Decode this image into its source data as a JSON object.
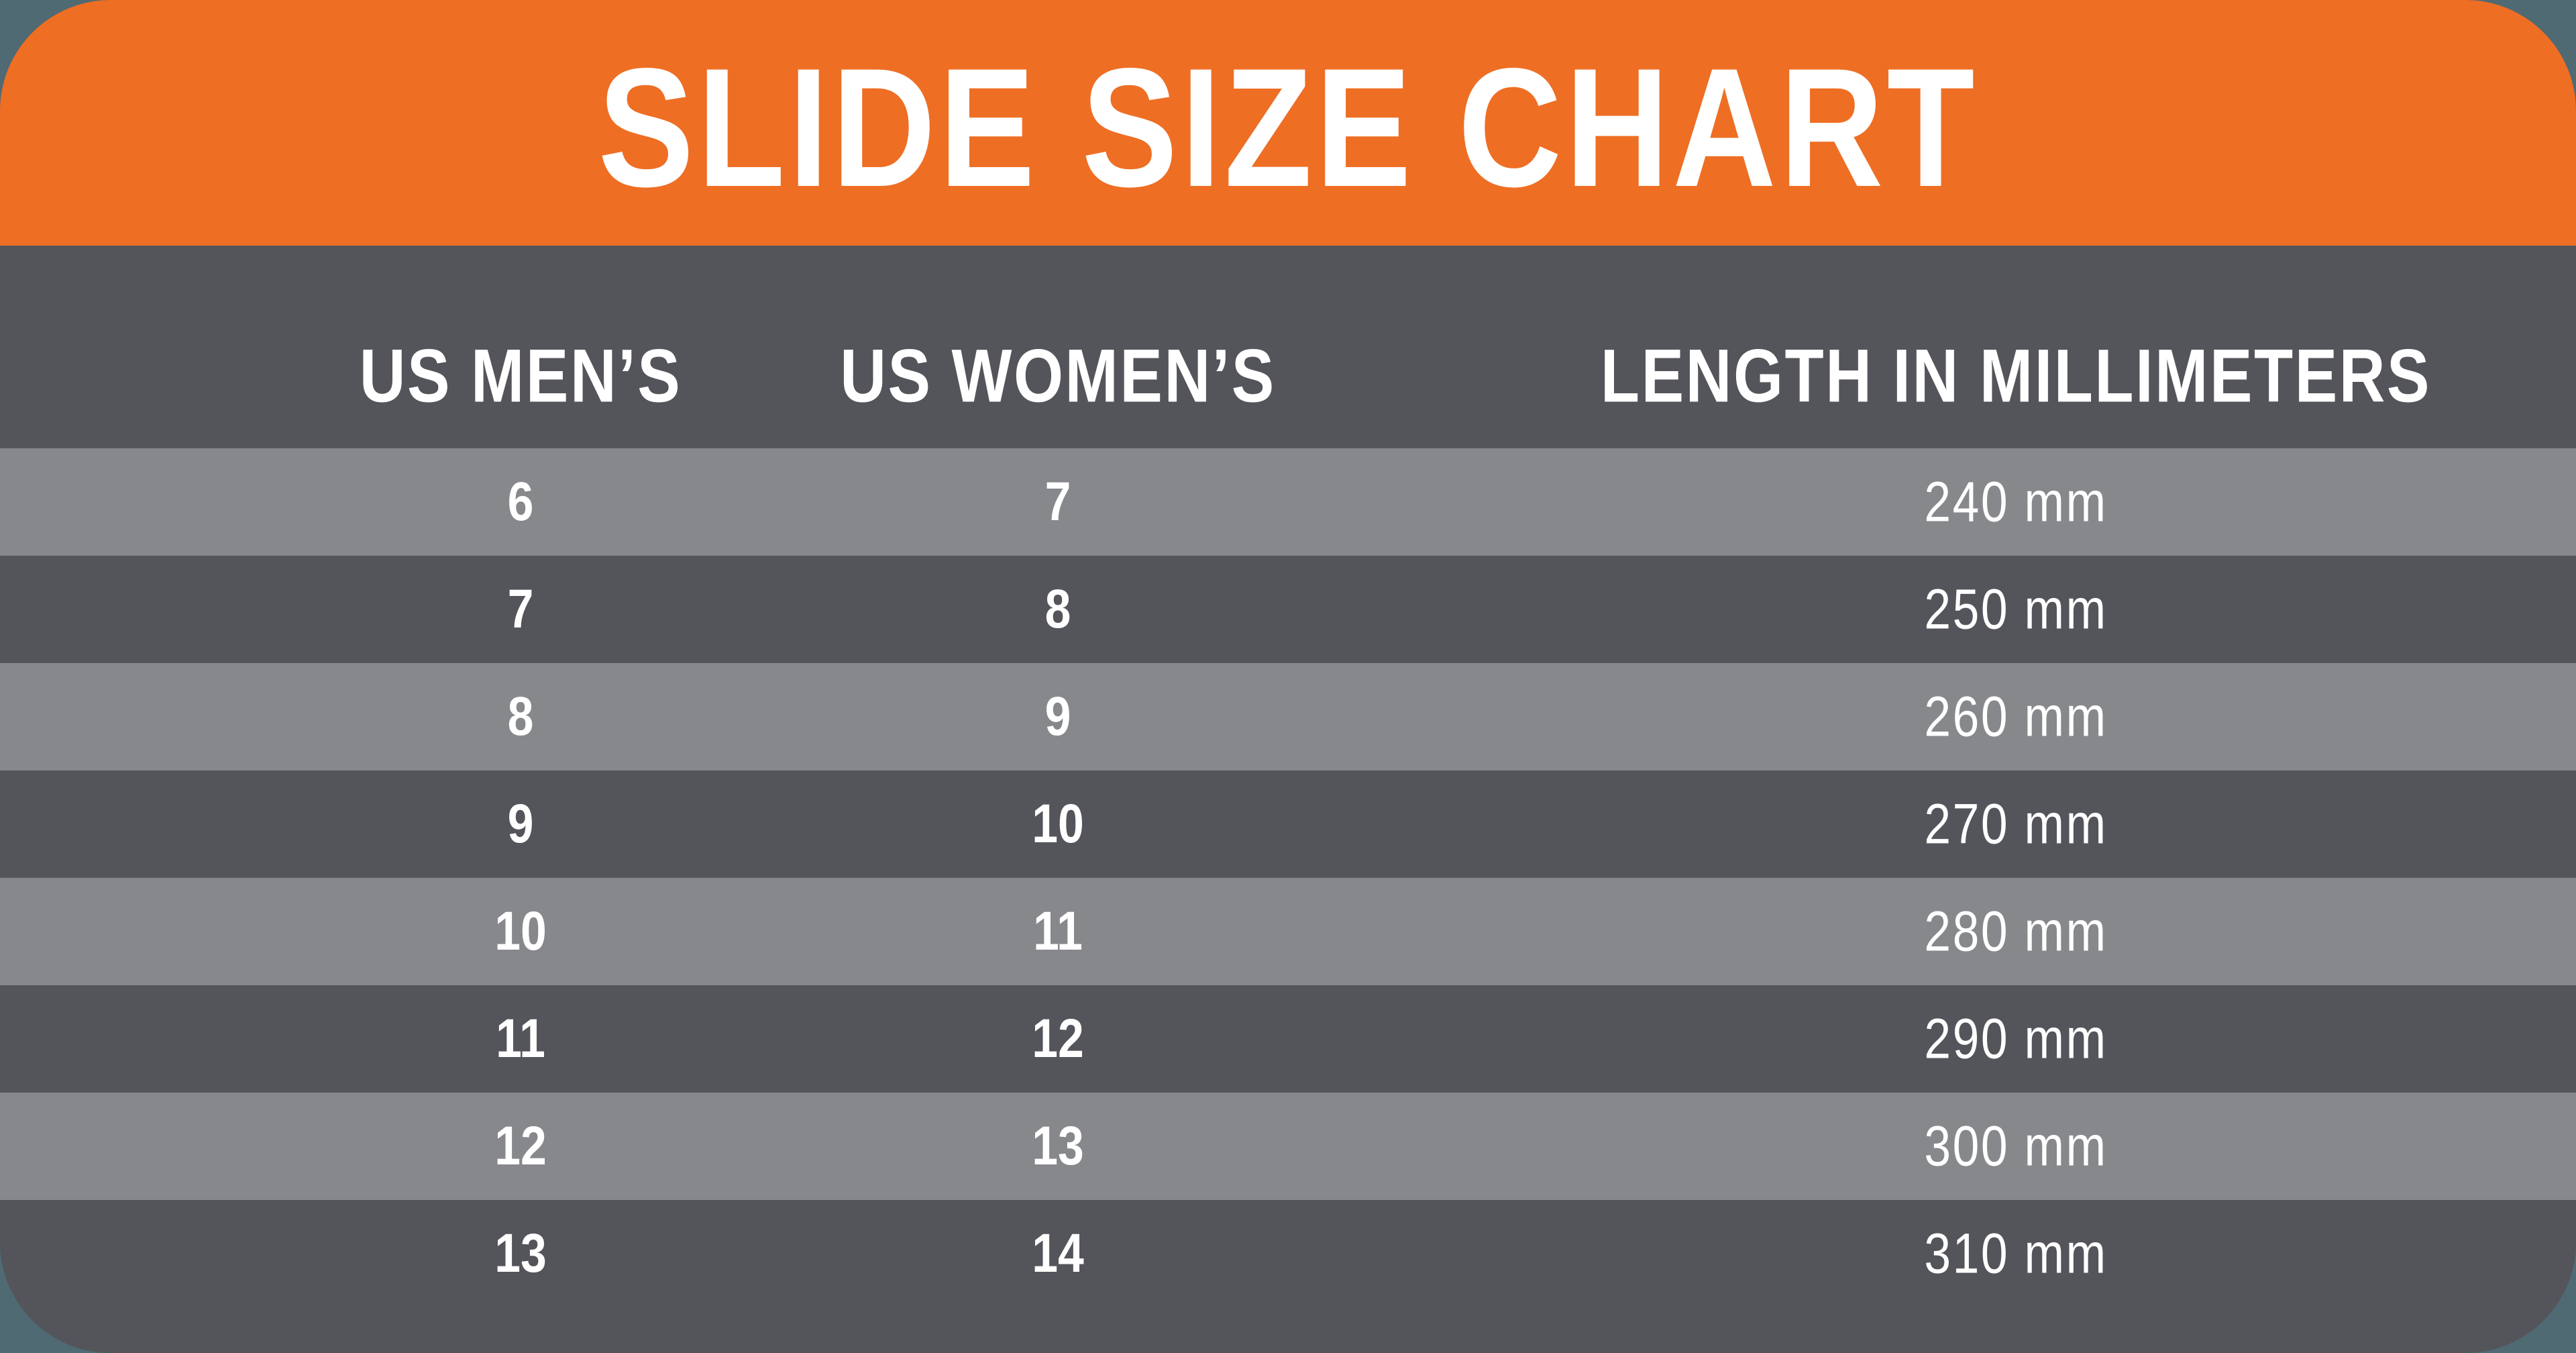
{
  "theme": {
    "canvas-bg": "#4F6A73",
    "card-bg": "#54555B",
    "header-bg": "#EE6E24",
    "row-light": "#86888C",
    "row-dark": "#54555B",
    "text-color": "#FFFFFF"
  },
  "header": {
    "title": "SLIDE SIZE CHART"
  },
  "table": {
    "columns": [
      {
        "key": "us_mens",
        "label": "US MEN’S"
      },
      {
        "key": "us_womens",
        "label": "US WOMEN’S"
      },
      {
        "key": "length_mm",
        "label": "LENGTH IN MILLIMETERS"
      }
    ],
    "rows": [
      {
        "us_mens": "6",
        "us_womens": "7",
        "length_mm": "240 mm"
      },
      {
        "us_mens": "7",
        "us_womens": "8",
        "length_mm": "250 mm"
      },
      {
        "us_mens": "8",
        "us_womens": "9",
        "length_mm": "260 mm"
      },
      {
        "us_mens": "9",
        "us_womens": "10",
        "length_mm": "270 mm"
      },
      {
        "us_mens": "10",
        "us_womens": "11",
        "length_mm": "280 mm"
      },
      {
        "us_mens": "11",
        "us_womens": "12",
        "length_mm": "290 mm"
      },
      {
        "us_mens": "12",
        "us_womens": "13",
        "length_mm": "300 mm"
      },
      {
        "us_mens": "13",
        "us_womens": "14",
        "length_mm": "310 mm"
      }
    ]
  },
  "chart_data": {
    "type": "table",
    "title": "SLIDE SIZE CHART",
    "columns": [
      "US MEN’S",
      "US WOMEN’S",
      "LENGTH IN MILLIMETERS"
    ],
    "rows": [
      [
        "6",
        "7",
        "240 mm"
      ],
      [
        "7",
        "8",
        "250 mm"
      ],
      [
        "8",
        "9",
        "260 mm"
      ],
      [
        "9",
        "10",
        "270 mm"
      ],
      [
        "10",
        "11",
        "280 mm"
      ],
      [
        "11",
        "12",
        "290 mm"
      ],
      [
        "12",
        "13",
        "300 mm"
      ],
      [
        "13",
        "14",
        "310 mm"
      ]
    ]
  }
}
